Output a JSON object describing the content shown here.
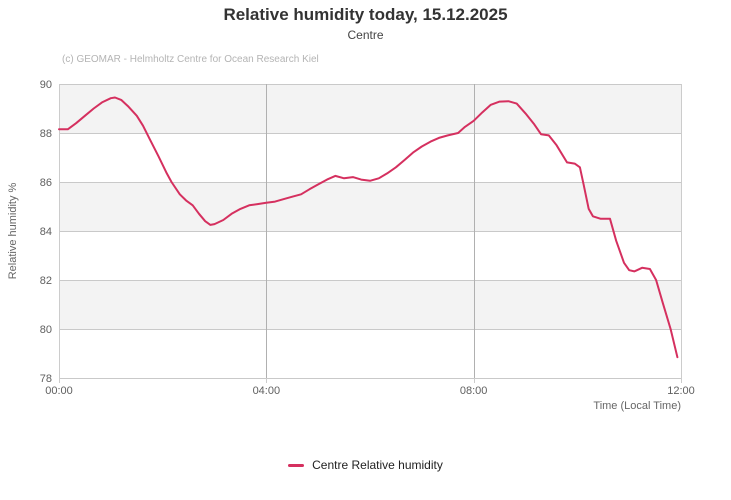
{
  "chart": {
    "title": "Relative humidity today, 15.12.2025",
    "subtitle": "Centre",
    "credits": "(c) GEOMAR - Helmholtz Centre for Ocean Research Kiel"
  },
  "chart_data": {
    "type": "line",
    "title": "Relative humidity today, 15.12.2025",
    "subtitle": "Centre",
    "grid": "on",
    "x_axis": {
      "title": "Time (Local Time)",
      "min": 0,
      "max": 12,
      "unit": "hours",
      "tick_values": [
        0,
        4,
        8,
        12
      ],
      "tick_labels": [
        "00:00",
        "04:00",
        "08:00",
        "12:00"
      ]
    },
    "y_axis": {
      "title": "Relative humidity %",
      "min": 78,
      "max": 90,
      "tick_values": [
        78,
        80,
        82,
        84,
        86,
        88,
        90
      ],
      "alternate_band_color": "#f3f3f3"
    },
    "legend": {
      "position": "bottom-center",
      "items": [
        {
          "label": "Centre Relative humidity",
          "color": "#d5305f"
        }
      ]
    },
    "series": [
      {
        "name": "Centre Relative humidity",
        "color": "#d5305f",
        "unit": "%",
        "points_hour_vs_humidity": [
          [
            0.0,
            88.15
          ],
          [
            0.17,
            88.15
          ],
          [
            0.33,
            88.4
          ],
          [
            0.5,
            88.7
          ],
          [
            0.67,
            89.0
          ],
          [
            0.83,
            89.25
          ],
          [
            1.0,
            89.42
          ],
          [
            1.08,
            89.45
          ],
          [
            1.2,
            89.35
          ],
          [
            1.33,
            89.1
          ],
          [
            1.5,
            88.7
          ],
          [
            1.62,
            88.3
          ],
          [
            1.75,
            87.75
          ],
          [
            1.92,
            87.05
          ],
          [
            2.08,
            86.35
          ],
          [
            2.17,
            86.0
          ],
          [
            2.33,
            85.5
          ],
          [
            2.45,
            85.25
          ],
          [
            2.58,
            85.05
          ],
          [
            2.7,
            84.7
          ],
          [
            2.82,
            84.4
          ],
          [
            2.92,
            84.25
          ],
          [
            3.0,
            84.28
          ],
          [
            3.17,
            84.45
          ],
          [
            3.33,
            84.7
          ],
          [
            3.5,
            84.9
          ],
          [
            3.67,
            85.05
          ],
          [
            3.83,
            85.1
          ],
          [
            4.0,
            85.15
          ],
          [
            4.17,
            85.2
          ],
          [
            4.33,
            85.3
          ],
          [
            4.5,
            85.4
          ],
          [
            4.67,
            85.5
          ],
          [
            4.83,
            85.7
          ],
          [
            5.0,
            85.9
          ],
          [
            5.17,
            86.1
          ],
          [
            5.33,
            86.25
          ],
          [
            5.5,
            86.15
          ],
          [
            5.67,
            86.2
          ],
          [
            5.83,
            86.1
          ],
          [
            6.0,
            86.05
          ],
          [
            6.17,
            86.15
          ],
          [
            6.33,
            86.35
          ],
          [
            6.5,
            86.6
          ],
          [
            6.67,
            86.9
          ],
          [
            6.83,
            87.2
          ],
          [
            7.0,
            87.45
          ],
          [
            7.17,
            87.65
          ],
          [
            7.33,
            87.8
          ],
          [
            7.5,
            87.9
          ],
          [
            7.7,
            88.0
          ],
          [
            7.83,
            88.25
          ],
          [
            8.0,
            88.5
          ],
          [
            8.17,
            88.85
          ],
          [
            8.33,
            89.15
          ],
          [
            8.5,
            89.28
          ],
          [
            8.67,
            89.3
          ],
          [
            8.83,
            89.2
          ],
          [
            9.0,
            88.8
          ],
          [
            9.17,
            88.35
          ],
          [
            9.3,
            87.95
          ],
          [
            9.45,
            87.9
          ],
          [
            9.6,
            87.5
          ],
          [
            9.8,
            86.8
          ],
          [
            9.95,
            86.75
          ],
          [
            10.05,
            86.6
          ],
          [
            10.12,
            85.9
          ],
          [
            10.22,
            84.9
          ],
          [
            10.3,
            84.6
          ],
          [
            10.45,
            84.5
          ],
          [
            10.63,
            84.5
          ],
          [
            10.75,
            83.6
          ],
          [
            10.9,
            82.7
          ],
          [
            11.0,
            82.4
          ],
          [
            11.1,
            82.35
          ],
          [
            11.25,
            82.5
          ],
          [
            11.4,
            82.45
          ],
          [
            11.52,
            82.0
          ],
          [
            11.65,
            81.05
          ],
          [
            11.8,
            80.0
          ],
          [
            11.93,
            78.85
          ]
        ]
      }
    ]
  },
  "colors": {
    "line": "#d5305f",
    "alternate_band": "#f3f3f3",
    "horizontal_grid": "#c9c9c9",
    "vertical_grid": "#b0b0b0",
    "axis_border": "#cccccc",
    "title_text": "#333333",
    "tick_text": "#606060",
    "credits_text": "#b4b4b4"
  }
}
